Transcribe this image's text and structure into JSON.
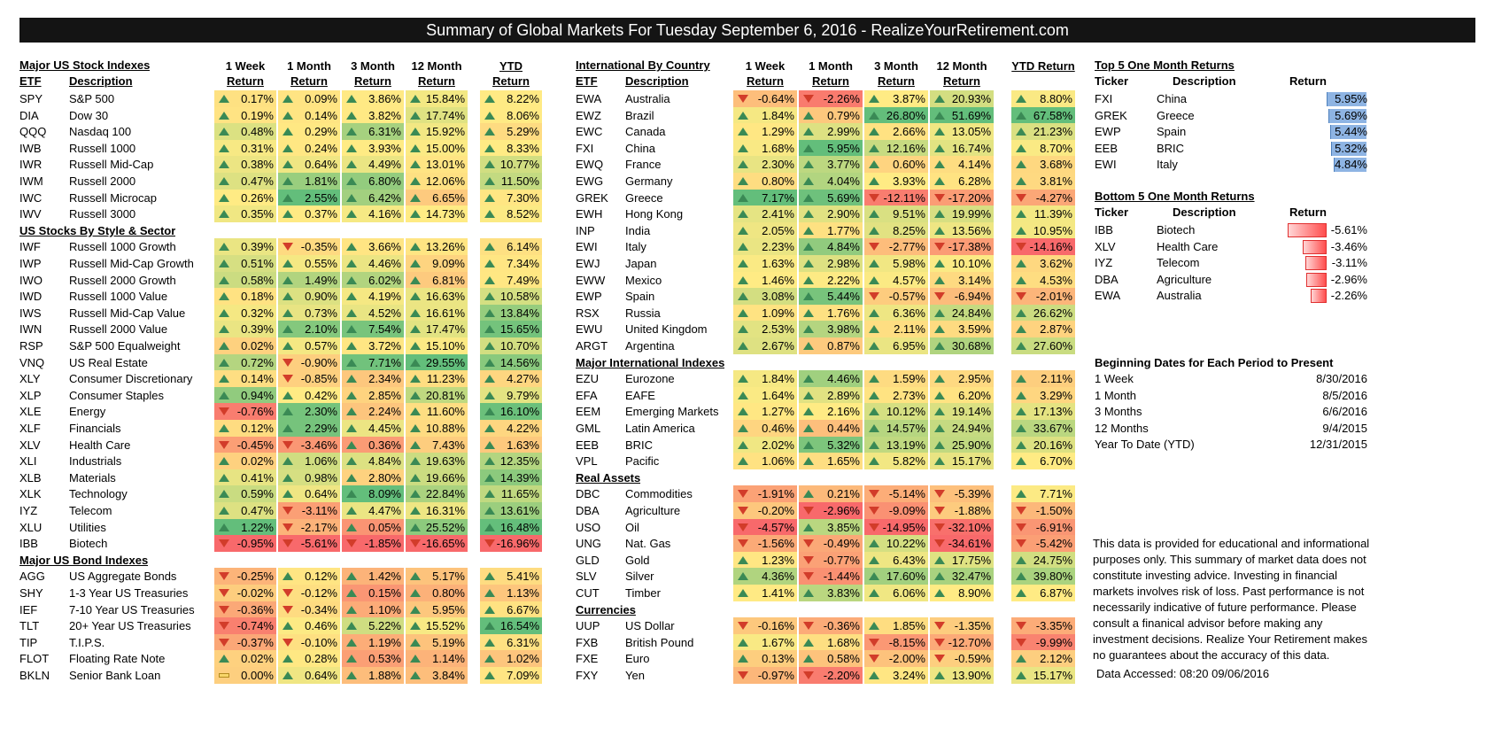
{
  "title": "Summary of Global Markets For Tuesday September 6, 2016 - RealizeYourRetirement.com",
  "column_headers": {
    "etf": "ETF",
    "description": "Description",
    "periods": [
      {
        "line1": "1 Week",
        "line2": "Return"
      },
      {
        "line1": "1 Month",
        "line2": "Return"
      },
      {
        "line1": "3 Month",
        "line2": "Return"
      },
      {
        "line1": "12 Month",
        "line2": "Return"
      },
      {
        "line1": "",
        "line2": "YTD Return"
      }
    ]
  },
  "left_title": "Major US Stock Indexes",
  "mid_title": "International By Country",
  "left_rows": [
    {
      "type": "data",
      "t": "SPY",
      "d": "S&P 500",
      "v": [
        "0.17%",
        "0.09%",
        "3.86%",
        "15.84%",
        "8.22%"
      ]
    },
    {
      "type": "data",
      "t": "DIA",
      "d": "Dow 30",
      "v": [
        "0.19%",
        "0.14%",
        "3.82%",
        "17.74%",
        "8.06%"
      ]
    },
    {
      "type": "data",
      "t": "QQQ",
      "d": "Nasdaq 100",
      "v": [
        "0.48%",
        "0.29%",
        "6.31%",
        "15.92%",
        "5.29%"
      ]
    },
    {
      "type": "data",
      "t": "IWB",
      "d": "Russell 1000",
      "v": [
        "0.31%",
        "0.24%",
        "3.93%",
        "15.00%",
        "8.33%"
      ]
    },
    {
      "type": "data",
      "t": "IWR",
      "d": "Russell Mid-Cap",
      "v": [
        "0.38%",
        "0.64%",
        "4.49%",
        "13.01%",
        "10.77%"
      ]
    },
    {
      "type": "data",
      "t": "IWM",
      "d": "Russell 2000",
      "v": [
        "0.47%",
        "1.81%",
        "6.80%",
        "12.06%",
        "11.50%"
      ]
    },
    {
      "type": "data",
      "t": "IWC",
      "d": "Russell Microcap",
      "v": [
        "0.26%",
        "2.55%",
        "6.42%",
        "6.65%",
        "7.30%"
      ]
    },
    {
      "type": "data",
      "t": "IWV",
      "d": "Russell 3000",
      "v": [
        "0.35%",
        "0.37%",
        "4.16%",
        "14.73%",
        "8.52%"
      ]
    },
    {
      "type": "section",
      "label": "US Stocks By Style & Sector"
    },
    {
      "type": "data",
      "t": "IWF",
      "d": "Russell 1000 Growth",
      "v": [
        "0.39%",
        "-0.35%",
        "3.66%",
        "13.26%",
        "6.14%"
      ]
    },
    {
      "type": "data",
      "t": "IWP",
      "d": "Russell Mid-Cap Growth",
      "v": [
        "0.51%",
        "0.55%",
        "4.46%",
        "9.09%",
        "7.34%"
      ]
    },
    {
      "type": "data",
      "t": "IWO",
      "d": "Russell 2000 Growth",
      "v": [
        "0.58%",
        "1.49%",
        "6.02%",
        "6.81%",
        "7.49%"
      ]
    },
    {
      "type": "data",
      "t": "IWD",
      "d": "Russell 1000 Value",
      "v": [
        "0.18%",
        "0.90%",
        "4.19%",
        "16.63%",
        "10.58%"
      ]
    },
    {
      "type": "data",
      "t": "IWS",
      "d": "Russell Mid-Cap Value",
      "v": [
        "0.32%",
        "0.73%",
        "4.52%",
        "16.61%",
        "13.84%"
      ]
    },
    {
      "type": "data",
      "t": "IWN",
      "d": "Russell 2000 Value",
      "v": [
        "0.39%",
        "2.10%",
        "7.54%",
        "17.47%",
        "15.65%"
      ]
    },
    {
      "type": "data",
      "t": "RSP",
      "d": "S&P 500 Equalweight",
      "v": [
        "0.02%",
        "0.57%",
        "3.72%",
        "15.10%",
        "10.70%"
      ]
    },
    {
      "type": "data",
      "t": "VNQ",
      "d": "US Real Estate",
      "v": [
        "0.72%",
        "-0.90%",
        "7.71%",
        "29.55%",
        "14.56%"
      ]
    },
    {
      "type": "data",
      "t": "XLY",
      "d": "Consumer Discretionary",
      "v": [
        "0.14%",
        "-0.85%",
        "2.34%",
        "11.23%",
        "4.27%"
      ]
    },
    {
      "type": "data",
      "t": "XLP",
      "d": "Consumer Staples",
      "v": [
        "0.94%",
        "0.42%",
        "2.85%",
        "20.81%",
        "9.79%"
      ]
    },
    {
      "type": "data",
      "t": "XLE",
      "d": "Energy",
      "v": [
        "-0.76%",
        "2.30%",
        "2.24%",
        "11.60%",
        "16.10%"
      ]
    },
    {
      "type": "data",
      "t": "XLF",
      "d": "Financials",
      "v": [
        "0.12%",
        "2.29%",
        "4.45%",
        "10.88%",
        "4.22%"
      ]
    },
    {
      "type": "data",
      "t": "XLV",
      "d": "Health Care",
      "v": [
        "-0.45%",
        "-3.46%",
        "0.36%",
        "7.43%",
        "1.63%"
      ]
    },
    {
      "type": "data",
      "t": "XLI",
      "d": "Industrials",
      "v": [
        "0.02%",
        "1.06%",
        "4.84%",
        "19.63%",
        "12.35%"
      ]
    },
    {
      "type": "data",
      "t": "XLB",
      "d": "Materials",
      "v": [
        "0.41%",
        "0.98%",
        "2.80%",
        "19.66%",
        "14.39%"
      ]
    },
    {
      "type": "data",
      "t": "XLK",
      "d": "Technology",
      "v": [
        "0.59%",
        "0.64%",
        "8.09%",
        "22.84%",
        "11.65%"
      ]
    },
    {
      "type": "data",
      "t": "IYZ",
      "d": "Telecom",
      "v": [
        "0.47%",
        "-3.11%",
        "4.47%",
        "16.31%",
        "13.61%"
      ]
    },
    {
      "type": "data",
      "t": "XLU",
      "d": "Utilities",
      "v": [
        "1.22%",
        "-2.17%",
        "0.05%",
        "25.52%",
        "16.48%"
      ]
    },
    {
      "type": "data",
      "t": "IBB",
      "d": "Biotech",
      "v": [
        "-0.95%",
        "-5.61%",
        "-1.85%",
        "-16.65%",
        "-16.96%"
      ]
    },
    {
      "type": "section",
      "label": "Major US Bond Indexes"
    },
    {
      "type": "data",
      "t": "AGG",
      "d": "US Aggregate Bonds",
      "v": [
        "-0.25%",
        "0.12%",
        "1.42%",
        "5.17%",
        "5.41%"
      ]
    },
    {
      "type": "data",
      "t": "SHY",
      "d": "1-3 Year US Treasuries",
      "v": [
        "-0.02%",
        "-0.12%",
        "0.15%",
        "0.80%",
        "1.13%"
      ]
    },
    {
      "type": "data",
      "t": "IEF",
      "d": "7-10 Year US Treasuries",
      "v": [
        "-0.36%",
        "-0.34%",
        "1.10%",
        "5.95%",
        "6.67%"
      ]
    },
    {
      "type": "data",
      "t": "TLT",
      "d": "20+ Year US Treasuries",
      "v": [
        "-0.74%",
        "0.46%",
        "5.22%",
        "15.52%",
        "16.54%"
      ]
    },
    {
      "type": "data",
      "t": "TIP",
      "d": "T.I.P.S.",
      "v": [
        "-0.37%",
        "-0.10%",
        "1.19%",
        "5.19%",
        "6.31%"
      ]
    },
    {
      "type": "data",
      "t": "FLOT",
      "d": "Floating Rate Note",
      "v": [
        "0.02%",
        "0.28%",
        "0.53%",
        "1.14%",
        "1.02%"
      ]
    },
    {
      "type": "data",
      "t": "BKLN",
      "d": "Senior Bank Loan",
      "v": [
        "0.00%",
        "0.64%",
        "1.88%",
        "3.84%",
        "7.09%"
      ]
    }
  ],
  "mid_rows": [
    {
      "type": "data",
      "t": "EWA",
      "d": "Australia",
      "v": [
        "-0.64%",
        "-2.26%",
        "3.87%",
        "20.93%",
        "8.80%"
      ]
    },
    {
      "type": "data",
      "t": "EWZ",
      "d": "Brazil",
      "v": [
        "1.84%",
        "0.79%",
        "26.80%",
        "51.69%",
        "67.58%"
      ]
    },
    {
      "type": "data",
      "t": "EWC",
      "d": "Canada",
      "v": [
        "1.29%",
        "2.99%",
        "2.66%",
        "13.05%",
        "21.23%"
      ]
    },
    {
      "type": "data",
      "t": "FXI",
      "d": "China",
      "v": [
        "1.68%",
        "5.95%",
        "12.16%",
        "16.74%",
        "8.70%"
      ]
    },
    {
      "type": "data",
      "t": "EWQ",
      "d": "France",
      "v": [
        "2.30%",
        "3.77%",
        "0.60%",
        "4.14%",
        "3.68%"
      ]
    },
    {
      "type": "data",
      "t": "EWG",
      "d": "Germany",
      "v": [
        "0.80%",
        "4.04%",
        "3.93%",
        "6.28%",
        "3.81%"
      ]
    },
    {
      "type": "data",
      "t": "GREK",
      "d": "Greece",
      "v": [
        "7.17%",
        "5.69%",
        "-12.11%",
        "-17.20%",
        "-4.27%"
      ]
    },
    {
      "type": "data",
      "t": "EWH",
      "d": "Hong Kong",
      "v": [
        "2.41%",
        "2.90%",
        "9.51%",
        "19.99%",
        "11.39%"
      ]
    },
    {
      "type": "data",
      "t": "INP",
      "d": "India",
      "v": [
        "2.05%",
        "1.77%",
        "8.25%",
        "13.56%",
        "10.95%"
      ]
    },
    {
      "type": "data",
      "t": "EWI",
      "d": "Italy",
      "v": [
        "2.23%",
        "4.84%",
        "-2.77%",
        "-17.38%",
        "-14.16%"
      ]
    },
    {
      "type": "data",
      "t": "EWJ",
      "d": "Japan",
      "v": [
        "1.63%",
        "2.98%",
        "5.98%",
        "10.10%",
        "3.62%"
      ]
    },
    {
      "type": "data",
      "t": "EWW",
      "d": "Mexico",
      "v": [
        "1.46%",
        "2.22%",
        "4.57%",
        "3.14%",
        "4.53%"
      ]
    },
    {
      "type": "data",
      "t": "EWP",
      "d": "Spain",
      "v": [
        "3.08%",
        "5.44%",
        "-0.57%",
        "-6.94%",
        "-2.01%"
      ]
    },
    {
      "type": "data",
      "t": "RSX",
      "d": "Russia",
      "v": [
        "1.09%",
        "1.76%",
        "6.36%",
        "24.84%",
        "26.62%"
      ]
    },
    {
      "type": "data",
      "t": "EWU",
      "d": "United Kingdom",
      "v": [
        "2.53%",
        "3.98%",
        "2.11%",
        "3.59%",
        "2.87%"
      ]
    },
    {
      "type": "data",
      "t": "ARGT",
      "d": "Argentina",
      "v": [
        "2.67%",
        "0.87%",
        "6.95%",
        "30.68%",
        "27.60%"
      ]
    },
    {
      "type": "section",
      "label": "Major International Indexes"
    },
    {
      "type": "data",
      "t": "EZU",
      "d": "Eurozone",
      "v": [
        "1.84%",
        "4.46%",
        "1.59%",
        "2.95%",
        "2.11%"
      ]
    },
    {
      "type": "data",
      "t": "EFA",
      "d": "EAFE",
      "v": [
        "1.64%",
        "2.89%",
        "2.73%",
        "6.20%",
        "3.29%"
      ]
    },
    {
      "type": "data",
      "t": "EEM",
      "d": "Emerging Markets",
      "v": [
        "1.27%",
        "2.16%",
        "10.12%",
        "19.14%",
        "17.13%"
      ]
    },
    {
      "type": "data",
      "t": "GML",
      "d": "Latin America",
      "v": [
        "0.46%",
        "0.44%",
        "14.57%",
        "24.94%",
        "33.67%"
      ]
    },
    {
      "type": "data",
      "t": "EEB",
      "d": "BRIC",
      "v": [
        "2.02%",
        "5.32%",
        "13.19%",
        "25.90%",
        "20.16%"
      ]
    },
    {
      "type": "data",
      "t": "VPL",
      "d": "Pacific",
      "v": [
        "1.06%",
        "1.65%",
        "5.82%",
        "15.17%",
        "6.70%"
      ]
    },
    {
      "type": "section",
      "label": "Real Assets"
    },
    {
      "type": "data",
      "t": "DBC",
      "d": "Commodities",
      "v": [
        "-1.91%",
        "0.21%",
        "-5.14%",
        "-5.39%",
        "7.71%"
      ]
    },
    {
      "type": "data",
      "t": "DBA",
      "d": "Agriculture",
      "v": [
        "-0.20%",
        "-2.96%",
        "-9.09%",
        "-1.88%",
        "-1.50%"
      ]
    },
    {
      "type": "data",
      "t": "USO",
      "d": "Oil",
      "v": [
        "-4.57%",
        "3.85%",
        "-14.95%",
        "-32.10%",
        "-6.91%"
      ]
    },
    {
      "type": "data",
      "t": "UNG",
      "d": "Nat. Gas",
      "v": [
        "-1.56%",
        "-0.49%",
        "10.22%",
        "-34.61%",
        "-5.42%"
      ]
    },
    {
      "type": "data",
      "t": "GLD",
      "d": "Gold",
      "v": [
        "1.23%",
        "-0.77%",
        "6.43%",
        "17.75%",
        "24.75%"
      ]
    },
    {
      "type": "data",
      "t": "SLV",
      "d": "Silver",
      "v": [
        "4.36%",
        "-1.44%",
        "17.60%",
        "32.47%",
        "39.80%"
      ]
    },
    {
      "type": "data",
      "t": "CUT",
      "d": "Timber",
      "v": [
        "1.41%",
        "3.83%",
        "6.06%",
        "8.90%",
        "6.87%"
      ]
    },
    {
      "type": "section",
      "label": "Currencies"
    },
    {
      "type": "data",
      "t": "UUP",
      "d": "US Dollar",
      "v": [
        "-0.16%",
        "-0.36%",
        "1.85%",
        "-1.35%",
        "-3.35%"
      ]
    },
    {
      "type": "data",
      "t": "FXB",
      "d": "British Pound",
      "v": [
        "1.67%",
        "1.68%",
        "-8.15%",
        "-12.70%",
        "-9.99%"
      ]
    },
    {
      "type": "data",
      "t": "FXE",
      "d": "Euro",
      "v": [
        "0.13%",
        "0.58%",
        "-2.00%",
        "-0.59%",
        "2.12%"
      ]
    },
    {
      "type": "data",
      "t": "FXY",
      "d": "Yen",
      "v": [
        "-0.97%",
        "-2.20%",
        "3.24%",
        "13.90%",
        "15.17%"
      ]
    }
  ],
  "top5": {
    "title": "Top 5 One Month Returns",
    "headers": [
      "Ticker",
      "Description",
      "Return"
    ],
    "rows": [
      {
        "t": "FXI",
        "d": "China",
        "r": "5.95%",
        "value": 5.95
      },
      {
        "t": "GREK",
        "d": "Greece",
        "r": "5.69%",
        "value": 5.69
      },
      {
        "t": "EWP",
        "d": "Spain",
        "r": "5.44%",
        "value": 5.44
      },
      {
        "t": "EEB",
        "d": "BRIC",
        "r": "5.32%",
        "value": 5.32
      },
      {
        "t": "EWI",
        "d": "Italy",
        "r": "4.84%",
        "value": 4.84
      }
    ]
  },
  "bottom5": {
    "title": "Bottom 5 One Month Returns",
    "headers": [
      "Ticker",
      "Description",
      "Return"
    ],
    "rows": [
      {
        "t": "IBB",
        "d": "Biotech",
        "r": "-5.61%",
        "value": -5.61
      },
      {
        "t": "XLV",
        "d": "Health Care",
        "r": "-3.46%",
        "value": -3.46
      },
      {
        "t": "IYZ",
        "d": "Telecom",
        "r": "-3.11%",
        "value": -3.11
      },
      {
        "t": "DBA",
        "d": "Agriculture",
        "r": "-2.96%",
        "value": -2.96
      },
      {
        "t": "EWA",
        "d": "Australia",
        "r": "-2.26%",
        "value": -2.26
      }
    ]
  },
  "dates": {
    "title": "Beginning Dates for Each Period to Present",
    "rows": [
      {
        "label": "1 Week",
        "date": "8/30/2016"
      },
      {
        "label": "1 Month",
        "date": "8/5/2016"
      },
      {
        "label": "3 Months",
        "date": "6/6/2016"
      },
      {
        "label": "12 Months",
        "date": "9/4/2015"
      },
      {
        "label": "Year To Date (YTD)",
        "date": "12/31/2015"
      }
    ]
  },
  "disclaimer_lines": [
    "This data is provided for educational and informational",
    "purposes only. This summary of market data does not",
    "constitute investing advice. Investing in financial",
    "markets involves risk of loss.  Past performance is not",
    "necessarily  indicative of future performance. Please",
    "consult a finanical advisor before making any",
    "investment decisions. Realize Your Retirement makes",
    "no guarantees about the accuracy of this data."
  ],
  "data_accessed": "Data Accessed: 08:20 09/06/2016",
  "colors": {
    "title_bg": "#141414",
    "green": "#63be7b",
    "yellow": "#ffeb84",
    "red": "#f8696b",
    "arrow_up": "#3a8a55",
    "arrow_down": "#d23c2a",
    "top_bar": "#8eb4e3",
    "bottom_bar": "#ff4d4d"
  }
}
